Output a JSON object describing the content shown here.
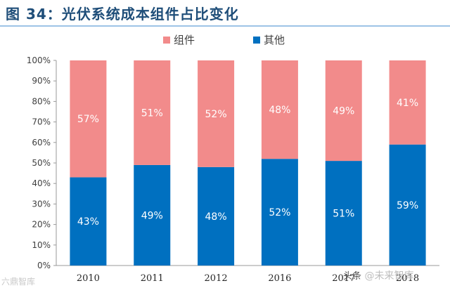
{
  "chart_data": {
    "type": "bar",
    "stacked": true,
    "title": "图 34：光伏系统成本组件占比变化",
    "categories": [
      "2010",
      "2011",
      "2012",
      "2016",
      "2017",
      "2018"
    ],
    "series": [
      {
        "name": "其他",
        "values": [
          43,
          49,
          48,
          52,
          51,
          59
        ],
        "color": "#0070c0",
        "labels": [
          "43%",
          "49%",
          "48%",
          "52%",
          "51%",
          "59%"
        ]
      },
      {
        "name": "组件",
        "values": [
          57,
          51,
          52,
          48,
          49,
          41
        ],
        "color": "#f28b8b",
        "labels": [
          "57%",
          "51%",
          "52%",
          "48%",
          "49%",
          "41%"
        ]
      }
    ],
    "legend_order": [
      "组件",
      "其他"
    ],
    "legend_position": "top-center",
    "ylim": [
      0,
      100
    ],
    "yticks": [
      0,
      10,
      20,
      30,
      40,
      50,
      60,
      70,
      80,
      90,
      100
    ],
    "ytick_labels": [
      "0%",
      "10%",
      "20%",
      "30%",
      "40%",
      "50%",
      "60%",
      "70%",
      "80%",
      "90%",
      "100%"
    ],
    "xlabel": "",
    "ylabel": ""
  },
  "watermarks": {
    "left": "六鼎智库",
    "right_prefix": "头条",
    "right": "@未来智库"
  }
}
